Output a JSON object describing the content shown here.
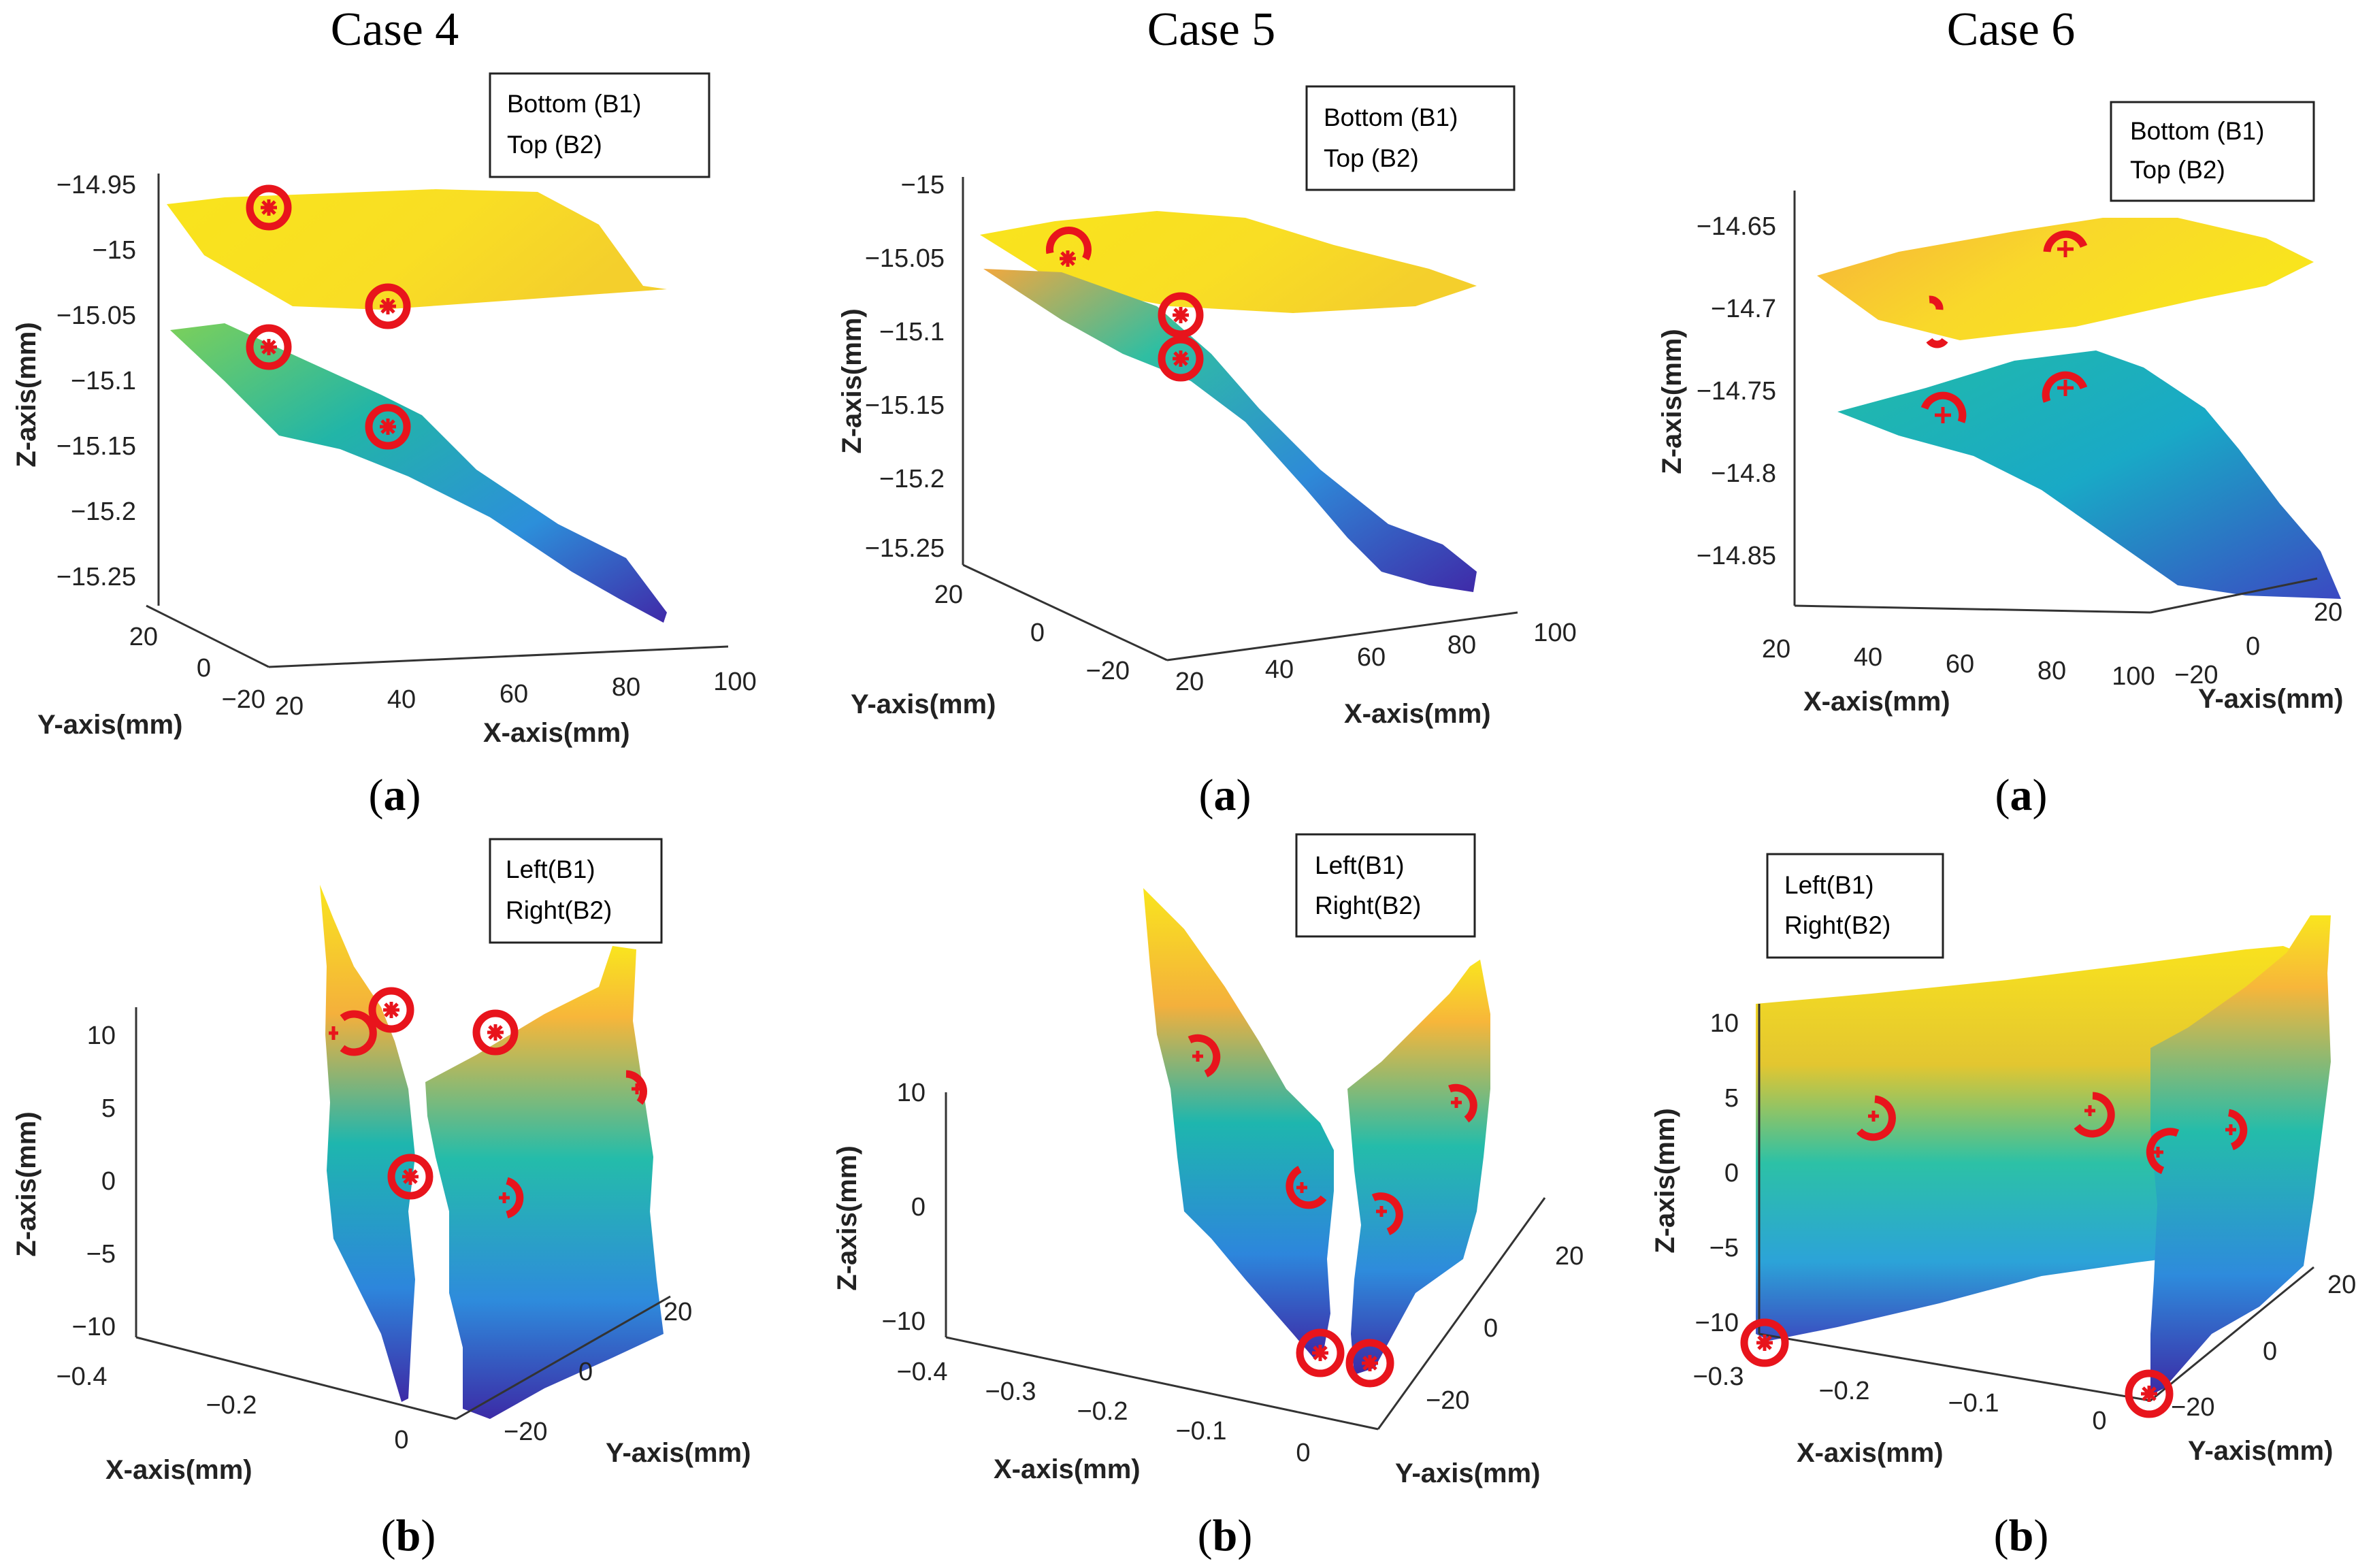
{
  "colors": {
    "surface_high": "#f9e21e",
    "surface_mid_high": "#f7b43a",
    "surface_mid": "#1fb8b0",
    "surface_mid_low": "#3a84d6",
    "surface_low": "#3f2fa6",
    "marker": "#e8141c"
  },
  "columns": [
    {
      "title": "Case 4"
    },
    {
      "title": "Case 5"
    },
    {
      "title": "Case 6"
    }
  ],
  "chart_data": [
    {
      "type": "surface3d",
      "case": "Case 4",
      "panel": "(a)",
      "legend": [
        "Bottom (B1)",
        "Top (B2)"
      ],
      "zlabel": "Z-axis(mm)",
      "ylabel": "Y-axis(mm)",
      "xlabel": "X-axis(mm)",
      "z_ticks": [
        "−14.95",
        "−15",
        "−15.05",
        "−15.1",
        "−15.15",
        "−15.2",
        "−15.25"
      ],
      "y_ticks": [
        "20",
        "0",
        "−20"
      ],
      "x_ticks": [
        "20",
        "40",
        "60",
        "80",
        "100"
      ],
      "surfaces": [
        {
          "name": "Top (B2)",
          "z_range": [
            -15.04,
            -14.96
          ]
        },
        {
          "name": "Bottom (B1)",
          "z_range": [
            -15.27,
            -15.08
          ]
        }
      ],
      "markers": 4
    },
    {
      "type": "surface3d",
      "case": "Case 5",
      "panel": "(a)",
      "legend": [
        "Bottom (B1)",
        "Top (B2)"
      ],
      "zlabel": "Z-axis(mm)",
      "ylabel": "Y-axis(mm)",
      "xlabel": "X-axis(mm)",
      "z_ticks": [
        "−15",
        "−15.05",
        "−15.1",
        "−15.15",
        "−15.2",
        "−15.25"
      ],
      "y_ticks": [
        "20",
        "0",
        "−20"
      ],
      "x_ticks": [
        "20",
        "40",
        "60",
        "80",
        "100"
      ],
      "surfaces": [
        {
          "name": "Top (B2)",
          "z_range": [
            -15.09,
            -15.03
          ]
        },
        {
          "name": "Bottom (B1)",
          "z_range": [
            -15.26,
            -15.06
          ]
        }
      ],
      "markers": 3
    },
    {
      "type": "surface3d",
      "case": "Case 6",
      "panel": "(a)",
      "legend": [
        "Bottom (B1)",
        "Top (B2)"
      ],
      "zlabel": "Z-axis(mm)",
      "ylabel": "Y-axis(mm)",
      "xlabel": "X-axis(mm)",
      "z_ticks": [
        "−14.65",
        "−14.7",
        "−14.75",
        "−14.8",
        "−14.85"
      ],
      "y_ticks": [
        "−20",
        "0",
        "20"
      ],
      "x_ticks": [
        "20",
        "40",
        "60",
        "80",
        "100"
      ],
      "surfaces": [
        {
          "name": "Top (B2)",
          "z_range": [
            -14.73,
            -14.65
          ]
        },
        {
          "name": "Bottom (B1)",
          "z_range": [
            -14.87,
            -14.74
          ]
        }
      ],
      "markers": 4
    },
    {
      "type": "surface3d",
      "case": "Case 4",
      "panel": "(b)",
      "legend": [
        "Left(B1)",
        "Right(B2)"
      ],
      "zlabel": "Z-axis(mm)",
      "ylabel": "Y-axis(mm)",
      "xlabel": "X-axis(mm)",
      "z_ticks": [
        "10",
        "5",
        "0",
        "−5",
        "−10"
      ],
      "x_ticks": [
        "−0.4",
        "−0.2",
        "0"
      ],
      "y_ticks": [
        "20",
        "0",
        "−20"
      ],
      "surfaces": [
        {
          "name": "Left(B1)",
          "z_range": [
            -10,
            10
          ]
        },
        {
          "name": "Right(B2)",
          "z_range": [
            -12,
            12
          ]
        }
      ],
      "markers": 6
    },
    {
      "type": "surface3d",
      "case": "Case 5",
      "panel": "(b)",
      "legend": [
        "Left(B1)",
        "Right(B2)"
      ],
      "zlabel": "Z-axis(mm)",
      "ylabel": "Y-axis(mm)",
      "xlabel": "X-axis(mm)",
      "z_ticks": [
        "10",
        "0",
        "−10"
      ],
      "x_ticks": [
        "−0.4",
        "−0.3",
        "−0.2",
        "−0.1",
        "0"
      ],
      "y_ticks": [
        "20",
        "0",
        "−20"
      ],
      "surfaces": [
        {
          "name": "Left(B1)",
          "z_range": [
            -11,
            20
          ]
        },
        {
          "name": "Right(B2)",
          "z_range": [
            -11,
            17
          ]
        }
      ],
      "markers": 6
    },
    {
      "type": "surface3d",
      "case": "Case 6",
      "panel": "(b)",
      "legend": [
        "Left(B1)",
        "Right(B2)"
      ],
      "zlabel": "Z-axis(mm)",
      "ylabel": "Y-axis(mm)",
      "xlabel": "X-axis(mm)",
      "z_ticks": [
        "10",
        "5",
        "0",
        "−5",
        "−10"
      ],
      "x_ticks": [
        "−0.3",
        "−0.2",
        "−0.1",
        "0"
      ],
      "y_ticks": [
        "−20",
        "0",
        "20"
      ],
      "surfaces": [
        {
          "name": "Left(B1)",
          "z_range": [
            -10,
            12
          ]
        },
        {
          "name": "Right(B2)",
          "z_range": [
            -12,
            14
          ]
        }
      ],
      "markers": 6
    }
  ]
}
